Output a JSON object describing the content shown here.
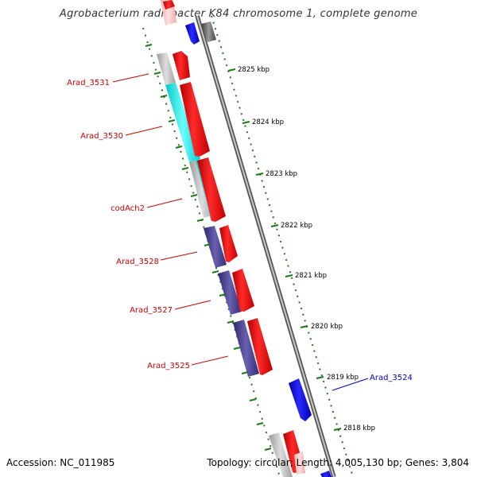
{
  "title": "Agrobacterium radiobacter K84 chromosome 1, complete genome",
  "footer": {
    "accession": "Accession: NC_011985",
    "summary": "Topology: circular; Length: 4,005,130 bp; Genes: 3,804"
  },
  "colors": {
    "forward_gene": "#ff0000",
    "reverse_gene": "#0000ff",
    "label_red": "#cc0000",
    "label_blue": "#0000cc",
    "tick_green": "#1a7a1a",
    "backbone": "#8a8a8a",
    "cyan_feature": "#00e6e6",
    "navy_feature": "#4a4090",
    "grey_feature": "#bbbbbb"
  },
  "gene_labels": [
    {
      "name": "Arad_3531",
      "color": "red"
    },
    {
      "name": "Arad_3530",
      "color": "red"
    },
    {
      "name": "codAch2",
      "color": "red"
    },
    {
      "name": "Arad_3528",
      "color": "red"
    },
    {
      "name": "Arad_3527",
      "color": "red"
    },
    {
      "name": "Arad_3525",
      "color": "red"
    },
    {
      "name": "Arad_3524",
      "color": "blue"
    }
  ],
  "kbp_ticks": [
    "2825 kbp",
    "2824 kbp",
    "2823 kbp",
    "2822 kbp",
    "2821 kbp",
    "2820 kbp",
    "2819 kbp",
    "2818 kbp"
  ]
}
